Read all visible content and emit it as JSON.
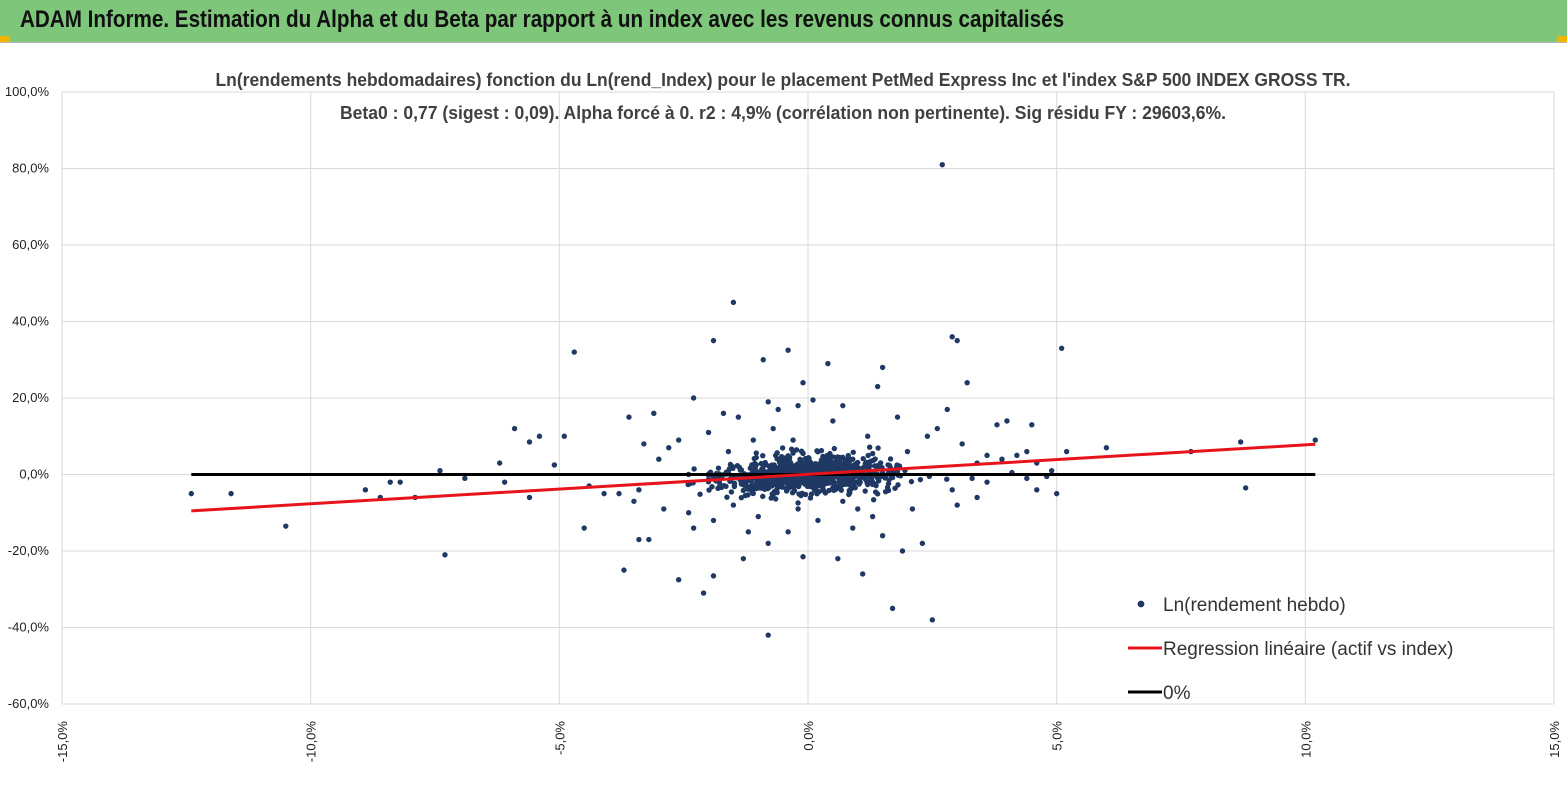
{
  "banner": {
    "title": "ADAM Informe. Estimation du Alpha et du Beta par rapport à un index avec les revenus connus capitalisés"
  },
  "chart_data": {
    "type": "scatter",
    "title_line1": "Ln(rendements hebdomadaires) fonction du Ln(rend_Index) pour le placement PetMed Express Inc et l'index S&P 500 INDEX GROSS TR.",
    "title_line2": "Beta0 : 0,77 (sigest : 0,09). Alpha forcé à 0. r2 : 4,9% (corrélation non pertinente). Sig résidu FY : 29603,6%.",
    "xlabel": "",
    "ylabel": "",
    "xlim": [
      -15,
      15
    ],
    "ylim": [
      -60,
      100
    ],
    "x_ticks": [
      -15,
      -10,
      -5,
      0,
      5,
      10,
      15
    ],
    "x_tick_labels": [
      "-15,0%",
      "-10,0%",
      "-5,0%",
      "0,0%",
      "5,0%",
      "10,0%",
      "15,0%"
    ],
    "y_ticks": [
      100,
      80,
      60,
      40,
      20,
      0,
      -20,
      -40,
      -60
    ],
    "y_tick_labels": [
      "100,0%",
      "80,0%",
      "60,0%",
      "40,0%",
      "20,0%",
      "0,0%",
      "-20,0%",
      "-40,0%",
      "-60,0%"
    ],
    "grid": true,
    "legend_position": "bottom-right",
    "series": [
      {
        "name": "Ln(rendement hebdo)",
        "kind": "points",
        "color": "#1f3864",
        "points": [
          [
            2.7,
            81
          ],
          [
            -1.5,
            45
          ],
          [
            2.9,
            36
          ],
          [
            3.0,
            35
          ],
          [
            5.1,
            33
          ],
          [
            -4.7,
            32
          ],
          [
            -1.9,
            35
          ],
          [
            -0.9,
            30
          ],
          [
            -0.4,
            32.5
          ],
          [
            0.4,
            29
          ],
          [
            1.5,
            28
          ],
          [
            -0.1,
            24
          ],
          [
            3.2,
            24
          ],
          [
            1.4,
            23
          ],
          [
            -2.3,
            20
          ],
          [
            -0.8,
            19
          ],
          [
            0.1,
            19.5
          ],
          [
            0.7,
            18
          ],
          [
            -0.2,
            18
          ],
          [
            2.8,
            17
          ],
          [
            -3.1,
            16
          ],
          [
            -1.7,
            16
          ],
          [
            -1.4,
            15
          ],
          [
            -3.6,
            15
          ],
          [
            3.8,
            13
          ],
          [
            4.0,
            14
          ],
          [
            -0.6,
            17
          ],
          [
            4.5,
            13
          ],
          [
            -5.9,
            12
          ],
          [
            -5.4,
            10
          ],
          [
            -4.9,
            10
          ],
          [
            -5.6,
            8.5
          ],
          [
            -3.3,
            8
          ],
          [
            -2.6,
            9
          ],
          [
            -1.1,
            9
          ],
          [
            -7.4,
            1
          ],
          [
            -6.9,
            -1
          ],
          [
            -6.1,
            -2
          ],
          [
            -6.2,
            3
          ],
          [
            -5.1,
            2.5
          ],
          [
            -5.6,
            -6
          ],
          [
            -4.4,
            -3
          ],
          [
            -4.1,
            -5
          ],
          [
            -3.8,
            -5
          ],
          [
            -3.4,
            -4
          ],
          [
            -8.9,
            -4
          ],
          [
            -8.6,
            -6
          ],
          [
            -8.4,
            -2
          ],
          [
            -8.2,
            -2
          ],
          [
            -7.9,
            -6
          ],
          [
            -11.6,
            -5
          ],
          [
            -12.4,
            -5
          ],
          [
            -10.5,
            -13.5
          ],
          [
            -7.3,
            -21
          ],
          [
            -4.5,
            -14
          ],
          [
            -3.4,
            -17
          ],
          [
            -3.2,
            -17
          ],
          [
            -2.3,
            -14
          ],
          [
            -1.2,
            -15
          ],
          [
            -1.3,
            -22
          ],
          [
            -1.9,
            -26.5
          ],
          [
            -2.1,
            -31
          ],
          [
            -3.7,
            -25
          ],
          [
            -2.6,
            -27.5
          ],
          [
            -0.8,
            -42
          ],
          [
            -0.1,
            -21.5
          ],
          [
            0.6,
            -22
          ],
          [
            1.1,
            -26
          ],
          [
            1.7,
            -35
          ],
          [
            2.5,
            -38
          ],
          [
            1.9,
            -20
          ],
          [
            2.3,
            -18
          ],
          [
            1.5,
            -16
          ],
          [
            0.9,
            -14
          ],
          [
            -0.4,
            -15
          ],
          [
            -0.8,
            -18
          ],
          [
            3.0,
            -8
          ],
          [
            3.4,
            -6
          ],
          [
            4.6,
            -4
          ],
          [
            5.0,
            -5
          ],
          [
            3.4,
            3
          ],
          [
            3.6,
            5
          ],
          [
            3.9,
            4
          ],
          [
            4.2,
            5
          ],
          [
            4.4,
            6
          ],
          [
            4.6,
            3
          ],
          [
            4.9,
            1
          ],
          [
            5.2,
            6
          ],
          [
            6.0,
            7
          ],
          [
            7.7,
            6
          ],
          [
            8.7,
            8.5
          ],
          [
            8.8,
            -3.5
          ],
          [
            10.2,
            9
          ],
          [
            3.3,
            -1
          ],
          [
            3.6,
            -2
          ],
          [
            4.1,
            0.5
          ],
          [
            4.4,
            -1
          ],
          [
            4.8,
            -0.5
          ],
          [
            3.1,
            8
          ],
          [
            2.4,
            10
          ],
          [
            2.0,
            6
          ],
          [
            1.2,
            10
          ],
          [
            -0.3,
            9
          ],
          [
            -1.6,
            6
          ],
          [
            -2.8,
            7
          ],
          [
            -3.0,
            4
          ],
          [
            -2.0,
            11
          ],
          [
            -0.7,
            12
          ],
          [
            0.5,
            14
          ],
          [
            1.8,
            15
          ],
          [
            2.6,
            12
          ],
          [
            -2.4,
            -10
          ],
          [
            -1.5,
            -8
          ],
          [
            -0.2,
            -9
          ],
          [
            0.7,
            -7
          ],
          [
            1.3,
            -11
          ],
          [
            2.1,
            -9
          ],
          [
            2.9,
            -4
          ],
          [
            -3.5,
            -7
          ],
          [
            -2.9,
            -9
          ],
          [
            -1.9,
            -12
          ],
          [
            -1.0,
            -11
          ],
          [
            0.2,
            -12
          ],
          [
            1.0,
            -9
          ]
        ]
      },
      {
        "name": "Regression linéaire (actif vs index)",
        "kind": "line",
        "color": "#e8141c",
        "points": [
          [
            -12.4,
            -9.5
          ],
          [
            10.2,
            7.9
          ]
        ]
      },
      {
        "name": "0%",
        "kind": "line",
        "color": "#000000",
        "points": [
          [
            -12.4,
            0
          ],
          [
            10.2,
            0
          ]
        ]
      }
    ]
  }
}
